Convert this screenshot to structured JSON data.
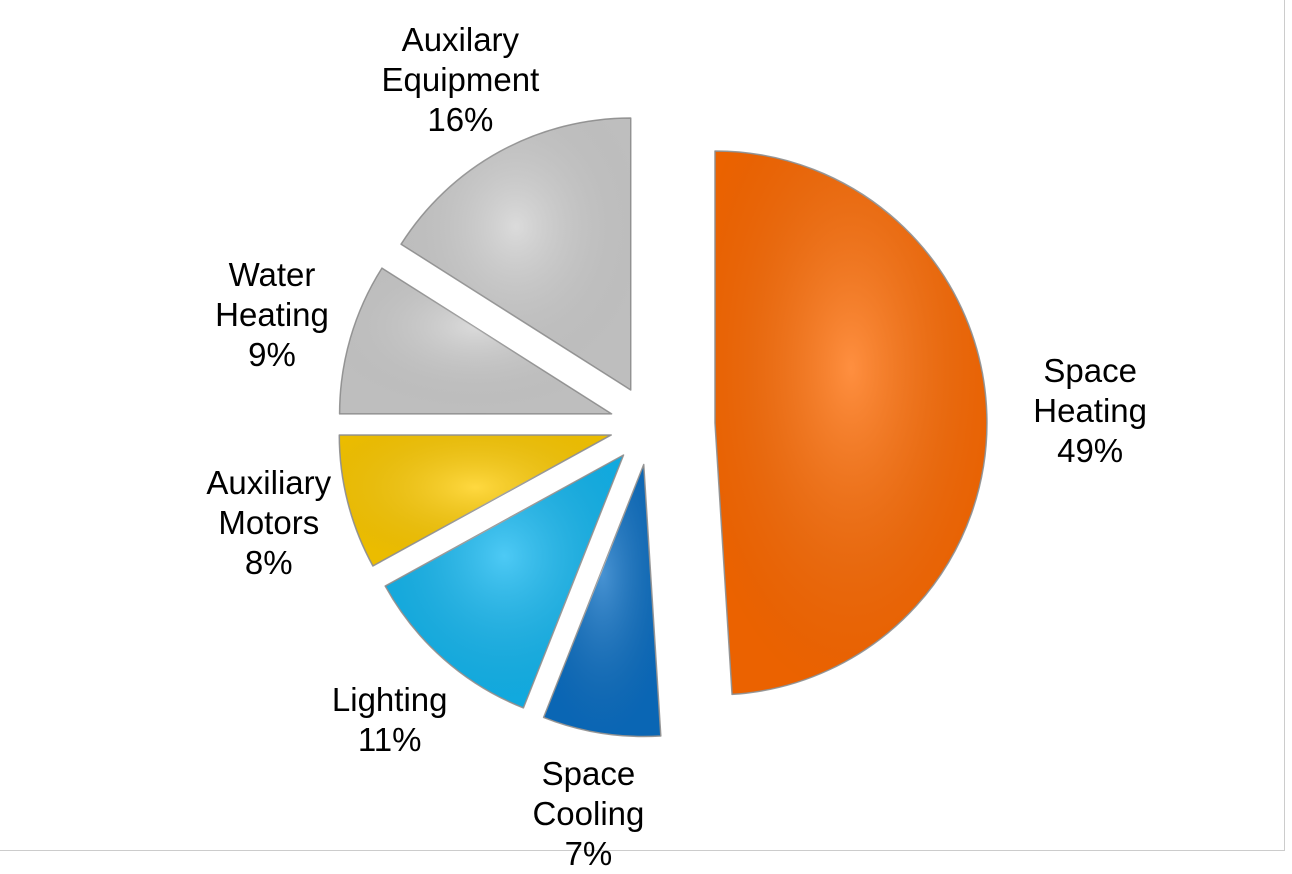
{
  "chart_data": {
    "type": "pie",
    "categories": [
      "Space Heating",
      "Space Cooling",
      "Lighting",
      "Auxiliary Motors",
      "Water Heating",
      "Auxilary Equipment"
    ],
    "values": [
      49,
      7,
      11,
      8,
      9,
      16
    ],
    "value_labels": [
      "49%",
      "7%",
      "11%",
      "8%",
      "9%",
      "16%"
    ],
    "colors": [
      "#ff6a00",
      "#0b6fc4",
      "#12b8f2",
      "#ffcc00",
      "#cfcfcf",
      "#cfcfcf"
    ]
  }
}
